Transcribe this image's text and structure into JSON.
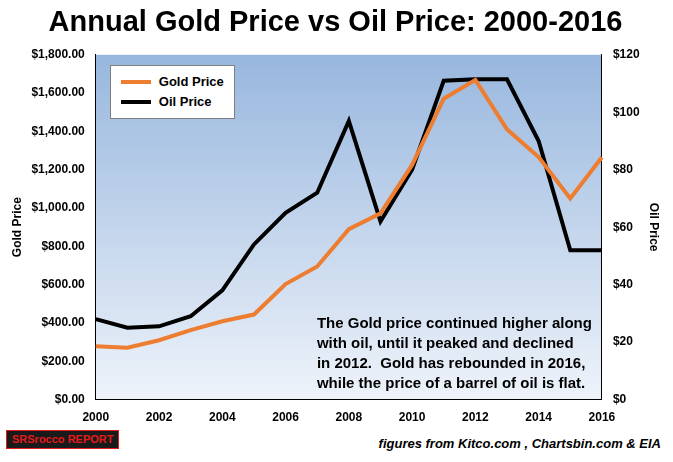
{
  "chart_data": {
    "type": "line",
    "title": "Annual Gold Price vs Oil Price: 2000-2016",
    "y_label": "Gold Price",
    "y2_label": "Oil Price",
    "categories": [
      "2000",
      null,
      "2002",
      null,
      "2004",
      null,
      "2006",
      null,
      "2008",
      null,
      "2010",
      null,
      "2012",
      null,
      "2014",
      null,
      "2016"
    ],
    "series": [
      {
        "name": "Gold Price",
        "color": "#ED7D31",
        "values": [
          279,
          271,
          310,
          363,
          409,
          444,
          603,
          695,
          890,
          972,
          1225,
          1571,
          1669,
          1411,
          1266,
          1050,
          1265
        ]
      },
      {
        "name": "Oil Price",
        "color": "#000000",
        "axis": "y2",
        "values": [
          28,
          25,
          25.5,
          29,
          38,
          54,
          65,
          72,
          97,
          62,
          80,
          111,
          111.5,
          111.5,
          90,
          52,
          52
        ]
      }
    ],
    "ylim": [
      0,
      1800
    ],
    "yticks": [
      {
        "value": 0,
        "label": "$0.00"
      },
      {
        "value": 200,
        "label": "$200.00"
      },
      {
        "value": 400,
        "label": "$400.00"
      },
      {
        "value": 600,
        "label": "$600.00"
      },
      {
        "value": 800,
        "label": "$800.00"
      },
      {
        "value": 1000,
        "label": "$1,000.00"
      },
      {
        "value": 1200,
        "label": "$1,200.00"
      },
      {
        "value": 1400,
        "label": "$1,400.00"
      },
      {
        "value": 1600,
        "label": "$1,600.00"
      },
      {
        "value": 1800,
        "label": "$1,800.00"
      }
    ],
    "y2lim": [
      0,
      120
    ],
    "y2ticks": [
      {
        "value": 0,
        "label": "$0"
      },
      {
        "value": 20,
        "label": "$20"
      },
      {
        "value": 40,
        "label": "$40"
      },
      {
        "value": 60,
        "label": "$60"
      },
      {
        "value": 80,
        "label": "$80"
      },
      {
        "value": 100,
        "label": "$100"
      },
      {
        "value": 120,
        "label": "$120"
      }
    ],
    "grid": false,
    "legend": "upper left",
    "annotation": [
      "The Gold price continued higher along",
      "with oil, until it peaked and declined",
      "in 2012.  Gold has rebounded in 2016,",
      "while the price of a barrel of oil is flat."
    ],
    "source": "figures from Kitco.com , Chartsbin.com & EIA",
    "logo": "SRSrocco REPORT"
  }
}
